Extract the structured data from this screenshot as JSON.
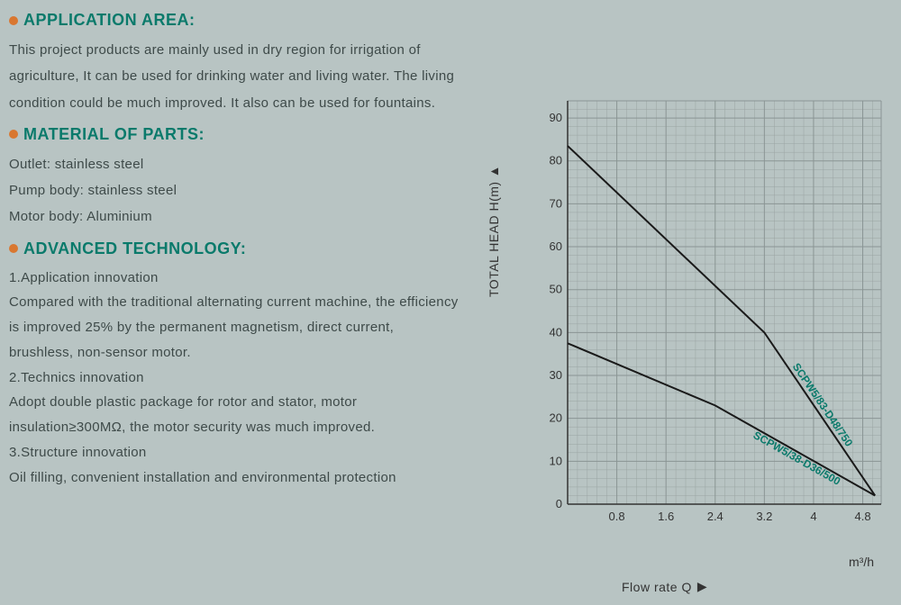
{
  "sections": {
    "application_area": {
      "title": "APPLICATION AREA:",
      "text": "This project products are mainly used in dry region for irrigation of agriculture, It can be used for drinking water and living water. The living condition could be much improved. It also can be used for fountains."
    },
    "material": {
      "title": "MATERIAL OF PARTS:",
      "lines": [
        "Outlet: stainless steel",
        "Pump body: stainless steel",
        "Motor body: Aluminium"
      ]
    },
    "advanced_tech": {
      "title": "ADVANCED TECHNOLOGY:",
      "subhead1": "1.Application innovation",
      "para1": "Compared with the traditional alternating current machine, the efficiency is improved 25% by the permanent magnetism, direct current, brushless, non-sensor motor.",
      "subhead2": "2.Technics innovation",
      "para2": "Adopt double plastic package for rotor and stator, motor insulation≥300MΩ, the motor security was much improved.",
      "subhead3": "3.Structure innovation",
      "para3": "Oil filling, convenient installation and environmental protection"
    }
  },
  "chart": {
    "type": "line",
    "y_axis_label": "TOTAL HEAD H(m)",
    "x_axis_label": "Flow rate Q",
    "x_unit": "m³/h",
    "x_ticks": [
      0.8,
      1.6,
      2.4,
      3.2,
      4,
      4.8
    ],
    "y_ticks": [
      0,
      10,
      20,
      30,
      40,
      50,
      60,
      70,
      80,
      90
    ],
    "y_min": 0,
    "y_max": 94,
    "x_min": 0,
    "x_max": 5.1,
    "grid_subdiv_x": 5,
    "grid_subdiv_y": 5,
    "grid_color": "#8a9594",
    "grid_minor_color": "#9aa4a3",
    "background_color": "#b8c4c3",
    "series": [
      {
        "label": "SCPW5/83-D48/750",
        "label_color": "#0a7a6b",
        "line_color": "#1a1a1a",
        "line_width": 2,
        "points": [
          [
            0,
            83.5
          ],
          [
            3.2,
            40
          ],
          [
            5.0,
            2
          ]
        ]
      },
      {
        "label": "SCPW5/38-D36/500",
        "label_color": "#0a7a6b",
        "line_color": "#1a1a1a",
        "line_width": 2,
        "points": [
          [
            0,
            37.5
          ],
          [
            2.4,
            23
          ],
          [
            5.0,
            2
          ]
        ]
      }
    ],
    "tick_fontsize": 13,
    "label_fontsize": 14,
    "series_label_fontsize": 12
  }
}
